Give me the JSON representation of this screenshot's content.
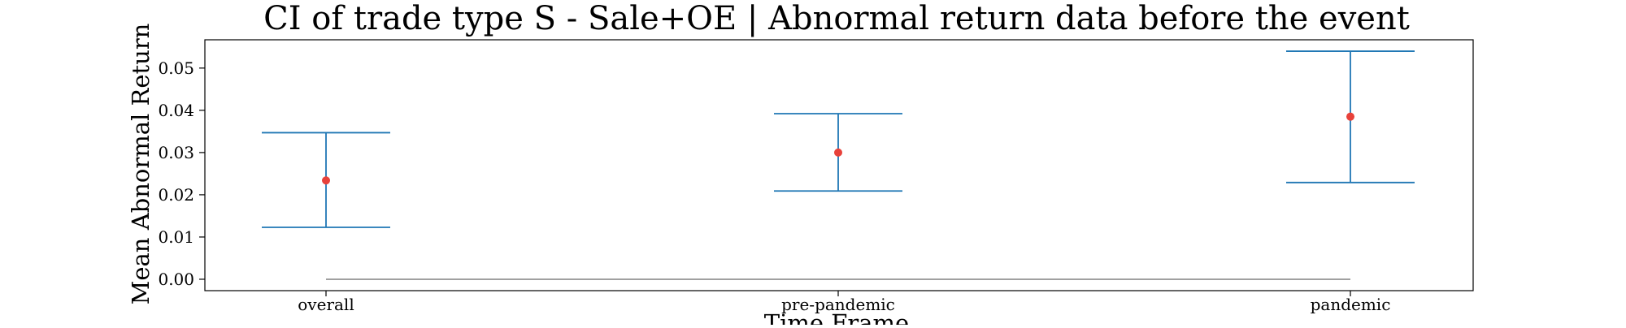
{
  "chart_data": {
    "type": "errorbar",
    "title": "CI of trade type  S - Sale+OE | Abnormal return data before the event",
    "xlabel": "Time Frame",
    "ylabel": "Mean Abnormal Return",
    "categories": [
      "overall",
      "pre-pandemic",
      "pandemic"
    ],
    "mean": [
      0.0234,
      0.03,
      0.0385
    ],
    "ci_lower": [
      0.0123,
      0.0209,
      0.0229
    ],
    "ci_upper": [
      0.0347,
      0.0392,
      0.054
    ],
    "yticks": [
      0.0,
      0.01,
      0.02,
      0.03,
      0.04,
      0.05
    ],
    "ytick_labels": [
      "0.00",
      "0.01",
      "0.02",
      "0.03",
      "0.04",
      "0.05"
    ],
    "ylim": [
      -0.0027,
      0.0567
    ],
    "reference_line": 0.0,
    "grid": false,
    "colors": {
      "errorbar": "#1f77b4",
      "mean_marker": "#e8413a",
      "reference_line": "#808080",
      "axes": "#000000"
    }
  }
}
